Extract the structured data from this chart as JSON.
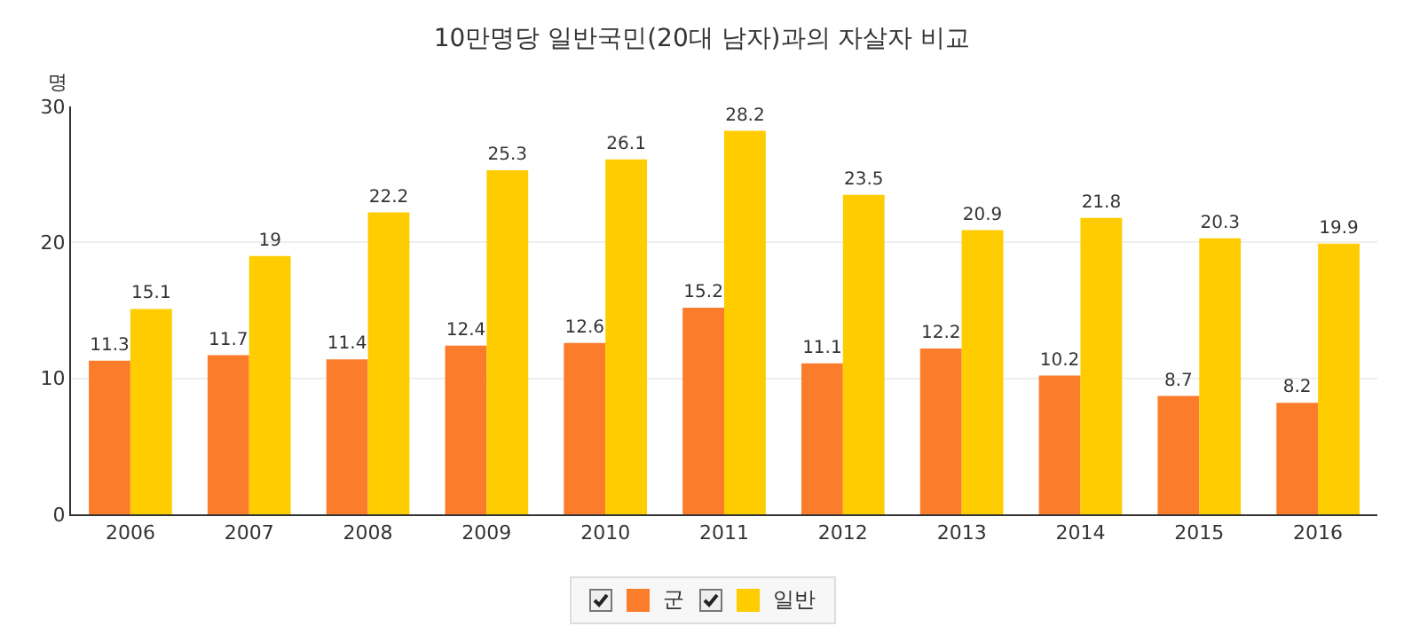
{
  "chart_data": {
    "type": "bar",
    "title": "10만명당 일반국민(20대 남자)과의 자살자 비교",
    "ylabel": "명",
    "categories": [
      "2006",
      "2007",
      "2008",
      "2009",
      "2010",
      "2011",
      "2012",
      "2013",
      "2014",
      "2015",
      "2016"
    ],
    "series": [
      {
        "name": "군",
        "color": "#fb7d2c",
        "values": [
          11.3,
          11.7,
          11.4,
          12.4,
          12.6,
          15.2,
          11.1,
          12.2,
          10.2,
          8.7,
          8.2
        ]
      },
      {
        "name": "일반",
        "color": "#ffcc00",
        "values": [
          15.1,
          19,
          22.2,
          25.3,
          26.1,
          28.2,
          23.5,
          20.9,
          21.8,
          20.3,
          19.9
        ]
      }
    ],
    "ylim": [
      0,
      30
    ],
    "yticks": [
      0,
      10,
      20,
      30
    ],
    "grid": "y",
    "legend": "bottom",
    "data_labels": true
  }
}
